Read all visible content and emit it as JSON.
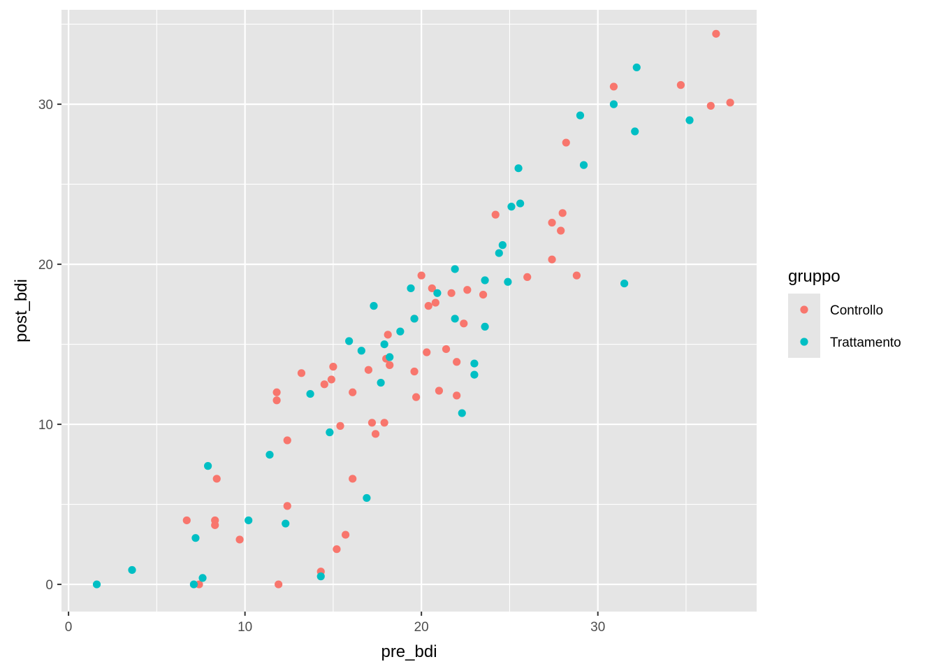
{
  "chart_data": {
    "type": "scatter",
    "xlabel": "pre_bdi",
    "ylabel": "post_bdi",
    "xlim": [
      -0.4,
      39.0
    ],
    "ylim": [
      -1.7,
      35.9
    ],
    "x_ticks": [
      0,
      10,
      20,
      30
    ],
    "y_ticks": [
      0,
      10,
      20,
      30
    ],
    "x_tick_labels": [
      "0",
      "10",
      "20",
      "30"
    ],
    "y_tick_labels": [
      "0",
      "10",
      "20",
      "30"
    ],
    "grid": true,
    "background": "#e5e5e5",
    "grid_color": "#ffffff",
    "legend": {
      "title": "gruppo",
      "position": "right"
    },
    "series": [
      {
        "name": "Controllo",
        "color": "#f8766d",
        "points": [
          [
            36.7,
            34.4
          ],
          [
            30.9,
            31.1
          ],
          [
            34.7,
            31.2
          ],
          [
            36.4,
            29.9
          ],
          [
            37.5,
            30.1
          ],
          [
            28.2,
            27.6
          ],
          [
            24.2,
            23.1
          ],
          [
            27.4,
            22.6
          ],
          [
            28.0,
            23.2
          ],
          [
            27.9,
            22.1
          ],
          [
            27.4,
            20.3
          ],
          [
            26.0,
            19.2
          ],
          [
            28.8,
            19.3
          ],
          [
            20.0,
            19.3
          ],
          [
            20.6,
            18.5
          ],
          [
            20.4,
            17.4
          ],
          [
            20.8,
            17.6
          ],
          [
            21.7,
            18.2
          ],
          [
            22.6,
            18.4
          ],
          [
            23.5,
            18.1
          ],
          [
            19.6,
            16.6
          ],
          [
            22.4,
            16.3
          ],
          [
            18.1,
            15.6
          ],
          [
            21.4,
            14.7
          ],
          [
            20.3,
            14.5
          ],
          [
            18.0,
            14.1
          ],
          [
            18.2,
            13.7
          ],
          [
            19.6,
            13.3
          ],
          [
            22.0,
            13.9
          ],
          [
            17.0,
            13.4
          ],
          [
            15.0,
            13.6
          ],
          [
            14.9,
            12.8
          ],
          [
            14.5,
            12.5
          ],
          [
            13.2,
            13.2
          ],
          [
            11.8,
            12.0
          ],
          [
            11.8,
            11.5
          ],
          [
            16.1,
            12.0
          ],
          [
            19.7,
            11.7
          ],
          [
            21.0,
            12.1
          ],
          [
            22.0,
            11.8
          ],
          [
            17.2,
            10.1
          ],
          [
            17.9,
            10.1
          ],
          [
            15.4,
            9.9
          ],
          [
            17.4,
            9.4
          ],
          [
            12.4,
            9.0
          ],
          [
            8.4,
            6.6
          ],
          [
            16.1,
            6.6
          ],
          [
            12.4,
            4.9
          ],
          [
            6.7,
            4.0
          ],
          [
            8.3,
            4.0
          ],
          [
            8.3,
            3.7
          ],
          [
            9.7,
            2.8
          ],
          [
            15.7,
            3.1
          ],
          [
            15.2,
            2.2
          ],
          [
            14.3,
            0.8
          ],
          [
            7.4,
            0.0
          ],
          [
            11.9,
            0.0
          ]
        ]
      },
      {
        "name": "Trattamento",
        "color": "#00bfc4",
        "points": [
          [
            32.2,
            32.3
          ],
          [
            30.9,
            30.0
          ],
          [
            29.0,
            29.3
          ],
          [
            35.2,
            29.0
          ],
          [
            32.1,
            28.3
          ],
          [
            29.2,
            26.2
          ],
          [
            25.5,
            26.0
          ],
          [
            25.6,
            23.8
          ],
          [
            25.1,
            23.6
          ],
          [
            24.6,
            21.2
          ],
          [
            24.4,
            20.7
          ],
          [
            21.9,
            19.7
          ],
          [
            23.6,
            19.0
          ],
          [
            24.9,
            18.9
          ],
          [
            31.5,
            18.8
          ],
          [
            19.4,
            18.5
          ],
          [
            20.9,
            18.2
          ],
          [
            17.3,
            17.4
          ],
          [
            19.6,
            16.6
          ],
          [
            21.9,
            16.6
          ],
          [
            23.6,
            16.1
          ],
          [
            18.8,
            15.8
          ],
          [
            15.9,
            15.2
          ],
          [
            17.9,
            15.0
          ],
          [
            16.6,
            14.6
          ],
          [
            18.2,
            14.2
          ],
          [
            23.0,
            13.8
          ],
          [
            23.0,
            13.1
          ],
          [
            17.7,
            12.6
          ],
          [
            13.7,
            11.9
          ],
          [
            22.3,
            10.7
          ],
          [
            14.8,
            9.5
          ],
          [
            11.4,
            8.1
          ],
          [
            7.9,
            7.4
          ],
          [
            16.9,
            5.4
          ],
          [
            10.2,
            4.0
          ],
          [
            12.3,
            3.8
          ],
          [
            7.2,
            2.9
          ],
          [
            3.6,
            0.9
          ],
          [
            14.3,
            0.5
          ],
          [
            7.6,
            0.4
          ],
          [
            1.6,
            0.0
          ],
          [
            7.1,
            0.0
          ]
        ]
      }
    ]
  }
}
